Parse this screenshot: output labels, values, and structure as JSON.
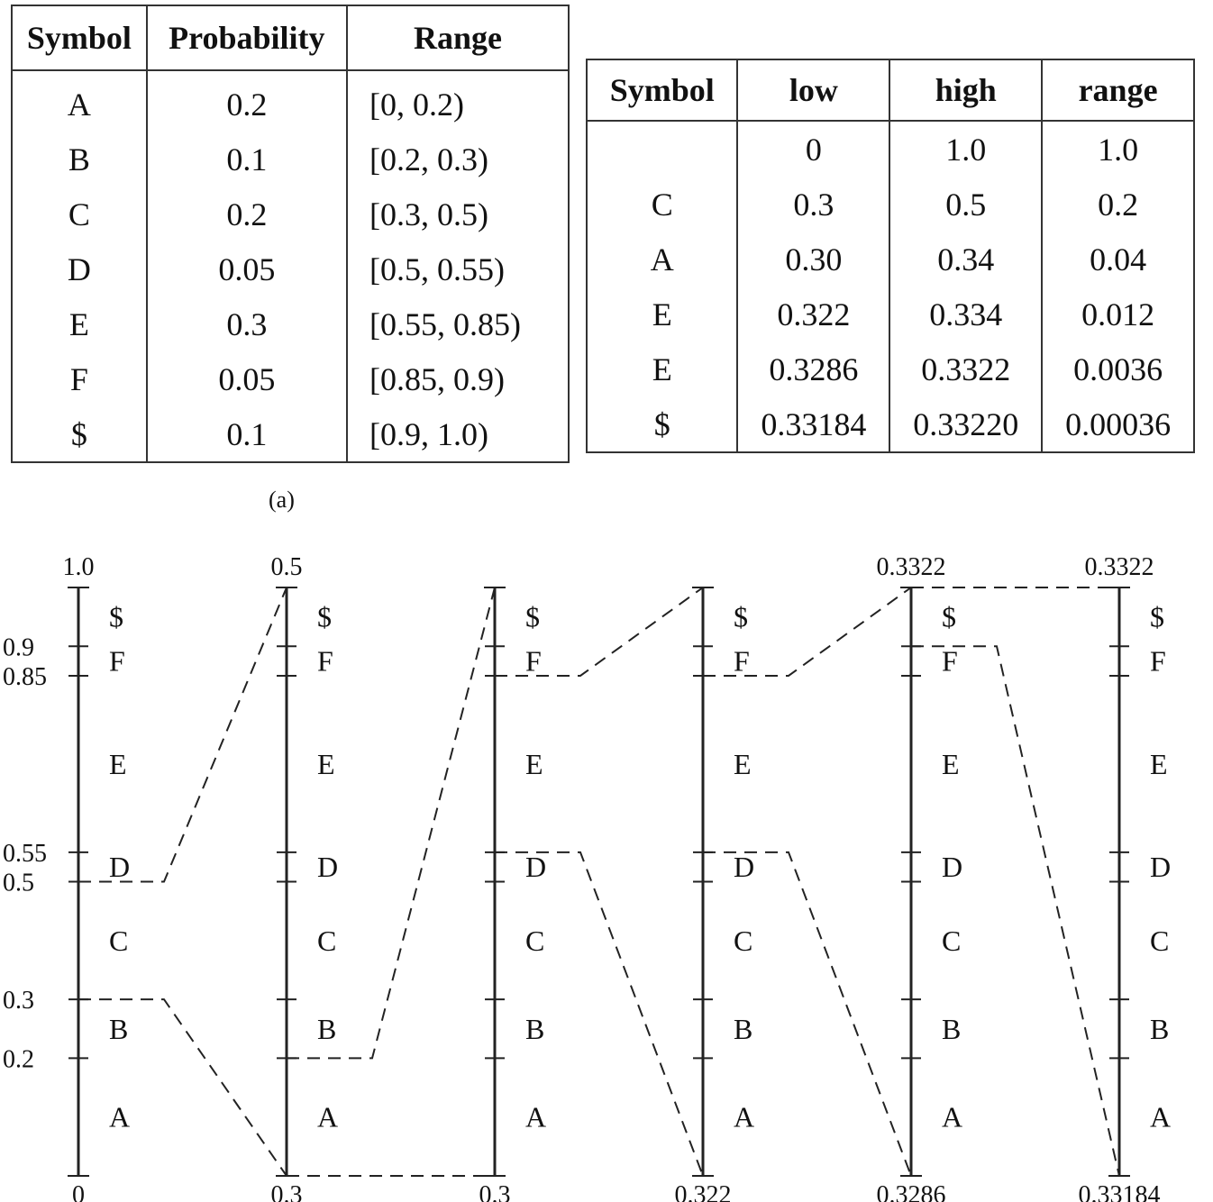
{
  "prob_table": {
    "headers": [
      "Symbol",
      "Probability",
      "Range"
    ],
    "rows": [
      [
        "A",
        "0.2",
        "[0, 0.2)"
      ],
      [
        "B",
        "0.1",
        "[0.2, 0.3)"
      ],
      [
        "C",
        "0.2",
        "[0.3, 0.5)"
      ],
      [
        "D",
        "0.05",
        "[0.5, 0.55)"
      ],
      [
        "E",
        "0.3",
        "[0.55, 0.85)"
      ],
      [
        "F",
        "0.05",
        "[0.85, 0.9)"
      ],
      [
        "$",
        "0.1",
        "[0.9, 1.0)"
      ]
    ]
  },
  "encode_table": {
    "headers": [
      "Symbol",
      "low",
      "high",
      "range"
    ],
    "rows": [
      [
        "",
        "0",
        "1.0",
        "1.0"
      ],
      [
        "C",
        "0.3",
        "0.5",
        "0.2"
      ],
      [
        "A",
        "0.30",
        "0.34",
        "0.04"
      ],
      [
        "E",
        "0.322",
        "0.334",
        "0.012"
      ],
      [
        "E",
        "0.3286",
        "0.3322",
        "0.0036"
      ],
      [
        "$",
        "0.33184",
        "0.33220",
        "0.00036"
      ]
    ]
  },
  "caption": "(a)",
  "diagram": {
    "symbols": [
      "A",
      "B",
      "C",
      "D",
      "E",
      "F",
      "$"
    ],
    "cumulative": [
      0,
      0.2,
      0.3,
      0.5,
      0.55,
      0.85,
      0.9,
      1.0
    ],
    "first_axis_tick_labels": [
      "0",
      "0.2",
      "0.3",
      "0.5",
      "0.55",
      "0.85",
      "0.9",
      "1.0"
    ],
    "intervals": [
      {
        "top_label": "1.0",
        "bottom_label": "0",
        "low": 0,
        "high": 1.0
      },
      {
        "top_label": "0.5",
        "bottom_label": "0.3",
        "low": 0.3,
        "high": 0.5
      },
      {
        "top_label": "",
        "bottom_label": "0.3",
        "low": 0.3,
        "high": 0.34
      },
      {
        "top_label": "",
        "bottom_label": "0.322",
        "low": 0.322,
        "high": 0.334
      },
      {
        "top_label": "0.3322",
        "bottom_label": "0.3286",
        "low": 0.3286,
        "high": 0.3322
      },
      {
        "top_label": "0.3322",
        "bottom_label": "0.33184",
        "low": 0.33184,
        "high": 0.3322
      }
    ]
  }
}
